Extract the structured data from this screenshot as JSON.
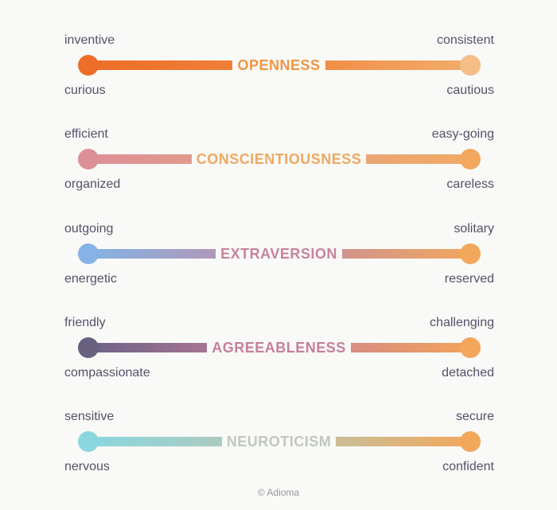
{
  "traits": [
    {
      "name": "OPENNESS",
      "left_top": "inventive",
      "left_bottom": "curious",
      "right_top": "consistent",
      "right_bottom": "cautious",
      "colors": {
        "start": "#ee6d28",
        "end": "#f4be86",
        "title": "#ef9542"
      }
    },
    {
      "name": "CONSCIENTIOUSNESS",
      "left_top": "efficient",
      "left_bottom": "organized",
      "right_top": "easy-going",
      "right_bottom": "careless",
      "colors": {
        "start": "#dd8f97",
        "end": "#f2a85e",
        "title": "#eda862"
      }
    },
    {
      "name": "EXTRAVERSION",
      "left_top": "outgoing",
      "left_bottom": "energetic",
      "right_top": "solitary",
      "right_bottom": "reserved",
      "colors": {
        "start": "#86b3e6",
        "end": "#f2a85b",
        "title": "#c7839f"
      }
    },
    {
      "name": "AGREEABLENESS",
      "left_top": "friendly",
      "left_bottom": "compassionate",
      "right_top": "challenging",
      "right_bottom": "detached",
      "colors": {
        "start": "#67607e",
        "end": "#f3a65c",
        "title": "#c57f99"
      }
    },
    {
      "name": "NEUROTICISM",
      "left_top": "sensitive",
      "left_bottom": "nervous",
      "right_top": "secure",
      "right_bottom": "confident",
      "colors": {
        "start": "#8bd7e0",
        "end": "#f2a75b",
        "title": "#bfc7c2"
      }
    }
  ],
  "credit": "© Adioma"
}
